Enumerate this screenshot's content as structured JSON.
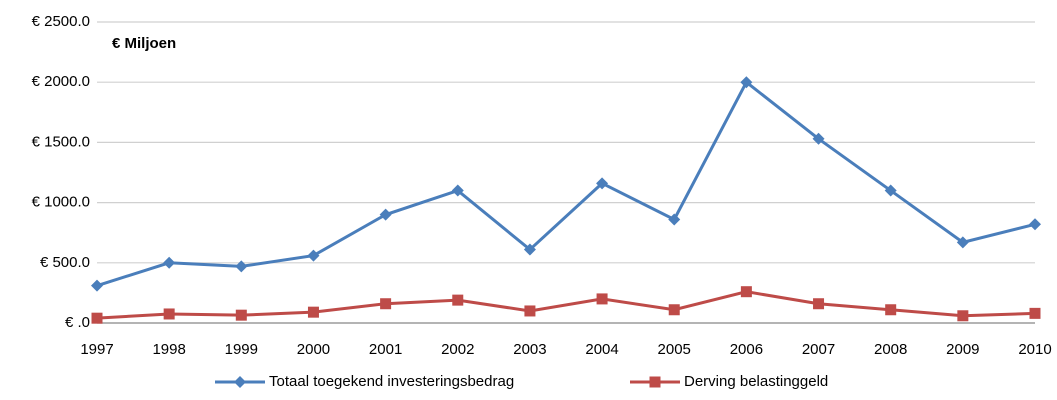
{
  "chart_data": {
    "type": "line",
    "annotation": "€ Miljoen",
    "categories": [
      "1997",
      "1998",
      "1999",
      "2000",
      "2001",
      "2002",
      "2003",
      "2004",
      "2005",
      "2006",
      "2007",
      "2008",
      "2009",
      "2010"
    ],
    "series": [
      {
        "name": "Totaal toegekend investeringsbedrag",
        "color": "#4a7ebb",
        "marker": "diamond",
        "values": [
          310,
          500,
          470,
          560,
          900,
          1100,
          610,
          1160,
          860,
          2000,
          1530,
          1100,
          670,
          820
        ]
      },
      {
        "name": "Derving belastinggeld",
        "color": "#be4b48",
        "marker": "square",
        "values": [
          40,
          75,
          65,
          90,
          160,
          190,
          100,
          200,
          110,
          260,
          160,
          110,
          60,
          80
        ]
      }
    ],
    "ylim": [
      0,
      2500
    ],
    "yticks": [
      {
        "value": 0,
        "label": "€ .0"
      },
      {
        "value": 500,
        "label": "€ 500.0"
      },
      {
        "value": 1000,
        "label": "€ 1000.0"
      },
      {
        "value": 1500,
        "label": "€ 1500.0"
      },
      {
        "value": 2000,
        "label": "€ 2000.0"
      },
      {
        "value": 2500,
        "label": "€ 2500.0"
      }
    ],
    "grid": true,
    "legend": "bottom"
  }
}
